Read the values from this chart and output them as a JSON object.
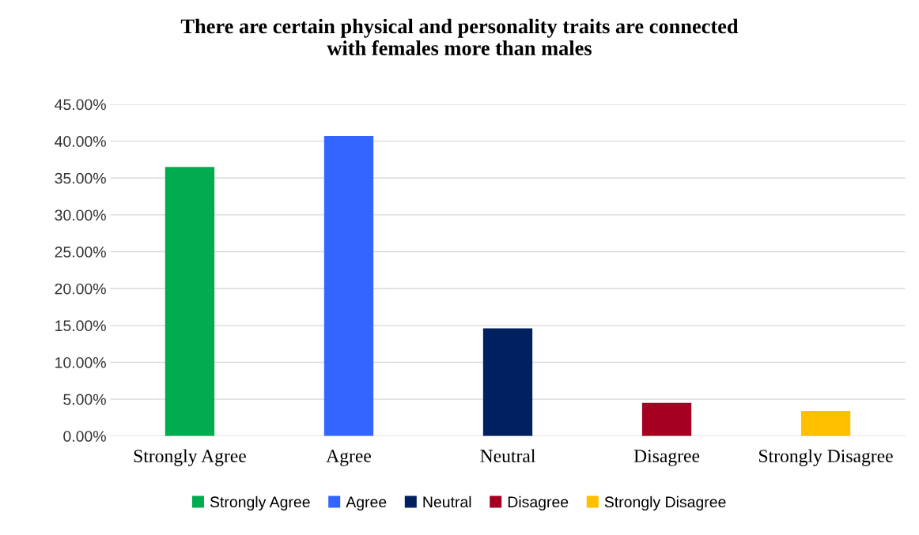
{
  "chart_data": {
    "type": "bar",
    "title": "There are certain physical and personality traits are connected\nwith females more than males",
    "categories": [
      "Strongly Agree",
      "Agree",
      "Neutral",
      "Disagree",
      "Strongly Disagree"
    ],
    "stacked": true,
    "series": [
      {
        "name": "Strongly Agree",
        "color": "#00ac4e",
        "values": [
          36.5,
          null,
          null,
          null,
          null
        ]
      },
      {
        "name": "Agree",
        "color": "#3366ff",
        "values": [
          null,
          40.7,
          null,
          null,
          null
        ]
      },
      {
        "name": "Neutral",
        "color": "#002060",
        "values": [
          null,
          null,
          14.6,
          null,
          null
        ]
      },
      {
        "name": "Disagree",
        "color": "#a50021",
        "values": [
          null,
          null,
          null,
          4.5,
          null
        ]
      },
      {
        "name": "Strongly Disagree",
        "color": "#ffc000",
        "values": [
          null,
          null,
          null,
          null,
          3.4
        ]
      }
    ],
    "ylim": [
      0,
      45
    ],
    "yticks": [
      {
        "value": 0,
        "label": "0.00%"
      },
      {
        "value": 5,
        "label": "5.00%"
      },
      {
        "value": 10,
        "label": "10.00%"
      },
      {
        "value": 15,
        "label": "15.00%"
      },
      {
        "value": 20,
        "label": "20.00%"
      },
      {
        "value": 25,
        "label": "25.00%"
      },
      {
        "value": 30,
        "label": "30.00%"
      },
      {
        "value": 35,
        "label": "35.00%"
      },
      {
        "value": 40,
        "label": "40.00%"
      },
      {
        "value": 45,
        "label": "45.00%"
      }
    ],
    "grid": "y",
    "legend": "bottom"
  }
}
